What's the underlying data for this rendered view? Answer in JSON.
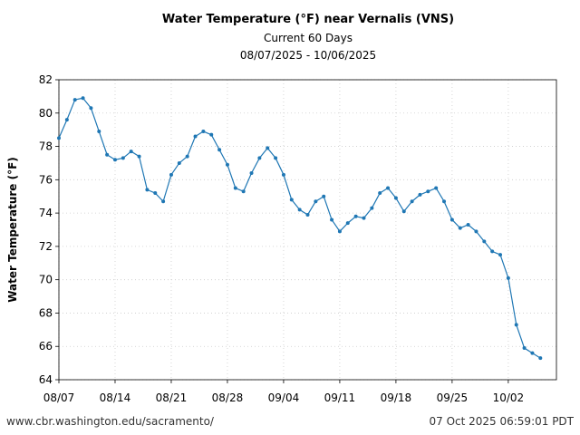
{
  "chart_data": {
    "type": "line",
    "title": "Water Temperature (°F) near Vernalis (VNS)",
    "subtitle_lines": [
      "Current 60 Days",
      "08/07/2025 - 10/06/2025"
    ],
    "xlabel": "",
    "ylabel": "Water Temperature (°F)",
    "ylim": [
      64,
      82
    ],
    "yticks": [
      64,
      66,
      68,
      70,
      72,
      74,
      76,
      78,
      80,
      82
    ],
    "xlim": [
      "08/07/2025",
      "10/08/2025"
    ],
    "x_tick_labels": [
      "08/07",
      "08/14",
      "08/21",
      "08/28",
      "09/04",
      "09/11",
      "09/18",
      "09/25",
      "10/02"
    ],
    "grid": true,
    "series_color": "#1f77b4",
    "series": [
      {
        "start_date": "08/07/2025",
        "interval": "daily",
        "values": [
          78.5,
          79.6,
          80.8,
          80.9,
          80.3,
          78.9,
          77.5,
          77.2,
          77.3,
          77.7,
          77.4,
          75.4,
          75.2,
          74.7,
          76.3,
          77.0,
          77.4,
          78.6,
          78.9,
          78.7,
          77.8,
          76.9,
          75.5,
          75.3,
          76.4,
          77.3,
          77.9,
          77.3,
          76.3,
          74.8,
          74.2,
          73.9,
          74.7,
          75.0,
          73.6,
          72.9,
          73.4,
          73.8,
          73.7,
          74.3,
          75.2,
          75.5,
          74.9,
          74.1,
          74.7,
          75.1,
          75.3,
          75.5,
          74.7,
          73.6,
          73.1,
          73.3,
          72.9,
          72.3,
          71.7,
          71.5,
          70.1,
          67.3,
          65.9,
          65.6,
          65.3
        ]
      }
    ]
  },
  "footer": {
    "source": "www.cbr.washington.edu/sacramento/",
    "timestamp": "07 Oct 2025 06:59:01 PDT"
  }
}
